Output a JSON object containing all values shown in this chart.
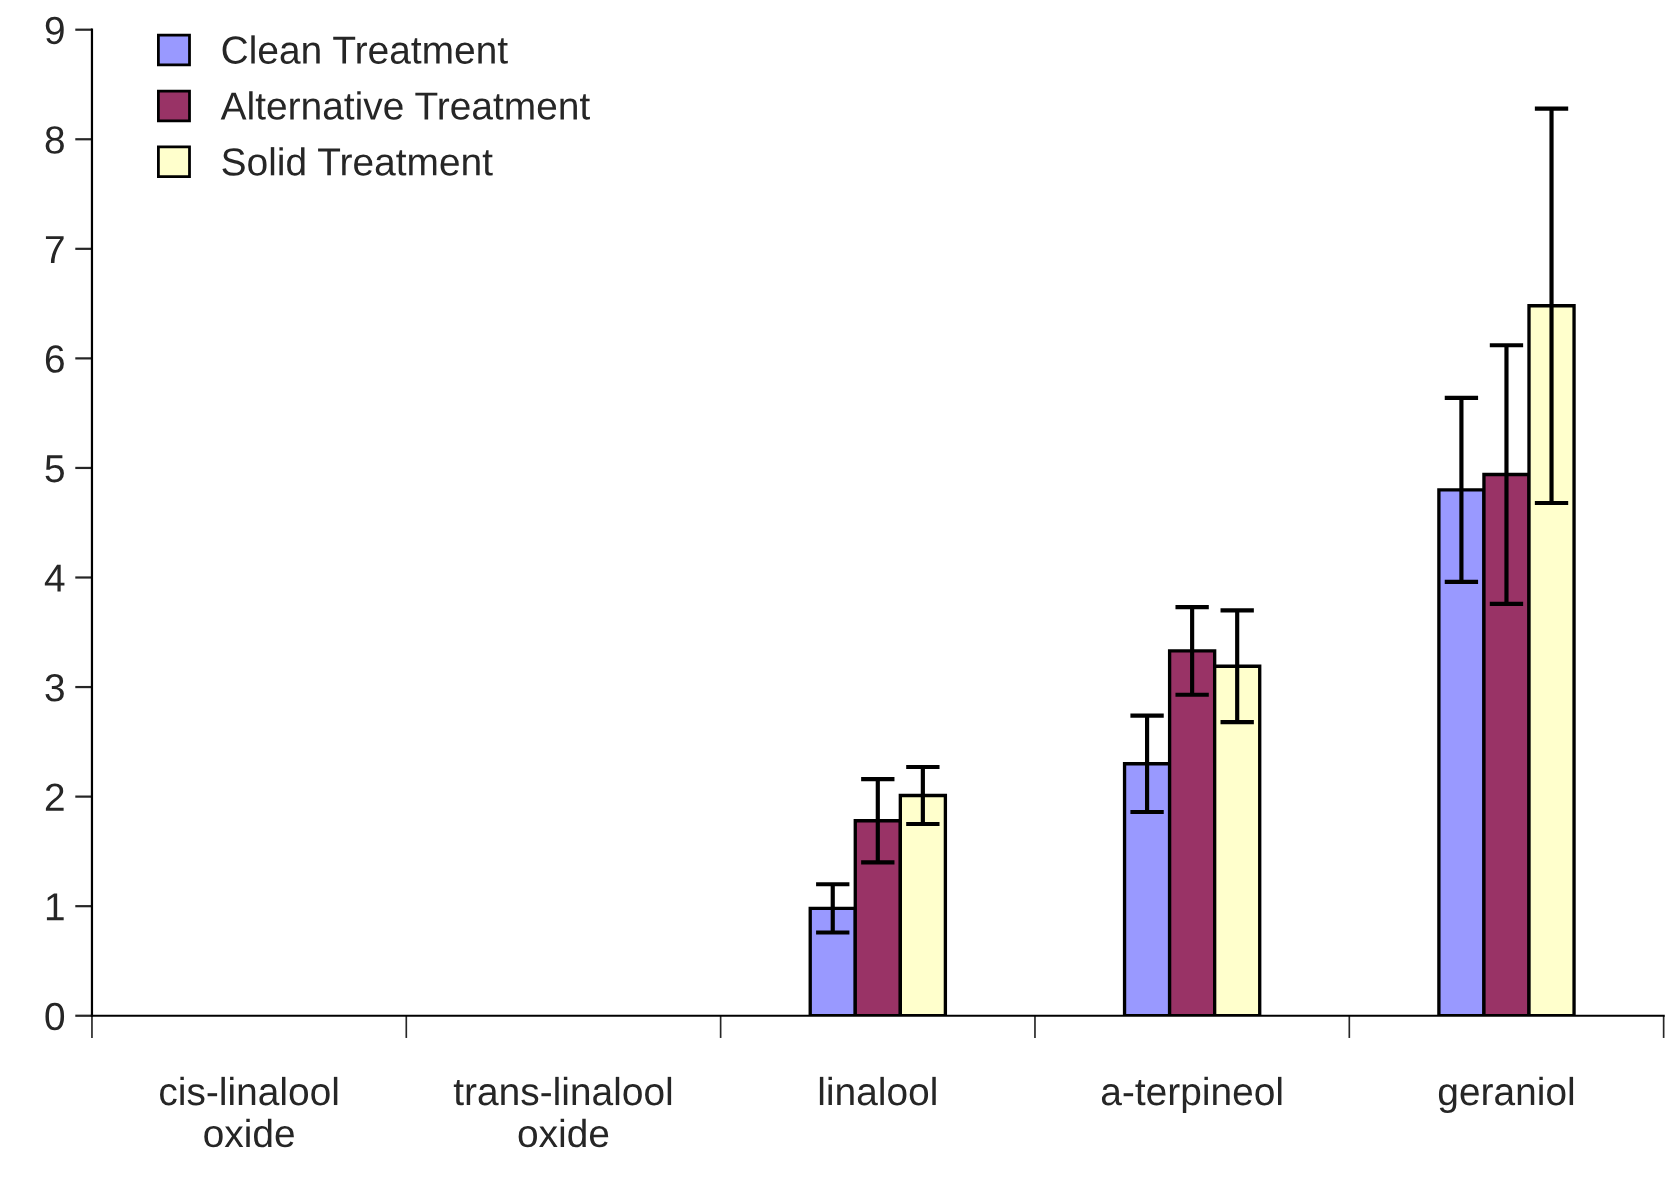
{
  "chart_data": {
    "type": "bar",
    "categories": [
      "cis-linalool\noxide",
      "trans-linalool\noxide",
      "linalool",
      "a-terpineol",
      "geraniol"
    ],
    "series": [
      {
        "name": "Clean Treatment",
        "color": "#9999ff",
        "values": [
          null,
          null,
          0.98,
          2.3,
          4.8
        ],
        "errors": [
          null,
          null,
          0.22,
          0.44,
          0.84
        ]
      },
      {
        "name": "Alternative Treatment",
        "color": "#993366",
        "values": [
          null,
          null,
          1.78,
          3.33,
          4.94
        ],
        "errors": [
          null,
          null,
          0.38,
          0.4,
          1.18
        ]
      },
      {
        "name": "Solid Treatment",
        "color": "#ffffcc",
        "values": [
          null,
          null,
          2.01,
          3.19,
          6.48
        ],
        "errors": [
          null,
          null,
          0.26,
          0.51,
          1.8
        ]
      }
    ],
    "ylim": [
      0,
      9
    ],
    "yticks": [
      0,
      1,
      2,
      3,
      4,
      5,
      6,
      7,
      8,
      9
    ],
    "grid": false,
    "legend": "top left"
  }
}
